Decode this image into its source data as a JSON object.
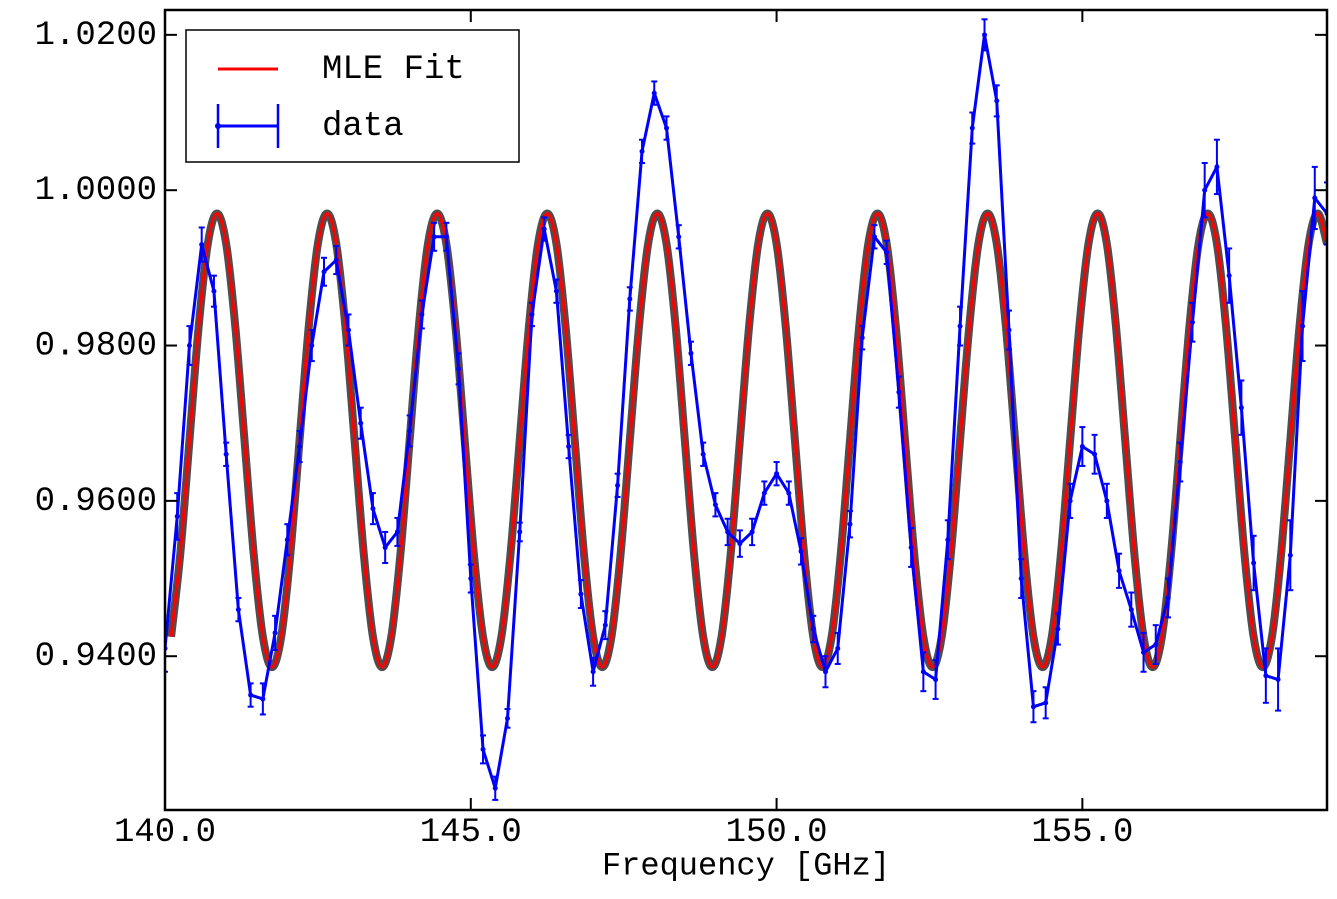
{
  "chart_data": {
    "type": "line",
    "xlabel": "Frequency [GHz]",
    "xlim": [
      140,
      159
    ],
    "ylim": [
      0.9202,
      1.0232
    ],
    "xticks": [
      {
        "value": 140,
        "label": "140.0"
      },
      {
        "value": 145,
        "label": "145.0"
      },
      {
        "value": 150,
        "label": "150.0"
      },
      {
        "value": 155,
        "label": "155.0"
      }
    ],
    "yticks": [
      {
        "value": 0.94,
        "label": "0.9400"
      },
      {
        "value": 0.96,
        "label": "0.9600"
      },
      {
        "value": 0.98,
        "label": "0.9800"
      },
      {
        "value": 1.0,
        "label": "1.0000"
      },
      {
        "value": 1.02,
        "label": "1.0200"
      }
    ],
    "legend": "upper left",
    "series": [
      {
        "name": "MLE Fit",
        "color": "#ff0000",
        "x": [
          140.1,
          140.25,
          140.4,
          140.55,
          140.7,
          140.85,
          141,
          141.15,
          141.3,
          141.45,
          141.6,
          141.75,
          141.9,
          142.05,
          142.2,
          142.35,
          142.5,
          142.65,
          142.8,
          142.95,
          143.1,
          143.25,
          143.4,
          143.55,
          143.7,
          143.85,
          144,
          144.15,
          144.3,
          144.45,
          144.6,
          144.75,
          144.9,
          145.05,
          145.2,
          145.35,
          145.5,
          145.65,
          145.8,
          145.95,
          146.1,
          146.25,
          146.4,
          146.55,
          146.7,
          146.85,
          147,
          147.15,
          147.3,
          147.45,
          147.6,
          147.75,
          147.9,
          148.05,
          148.2,
          148.35,
          148.5,
          148.65,
          148.8,
          148.95,
          149.1,
          149.25,
          149.4,
          149.55,
          149.7,
          149.85,
          150,
          150.15,
          150.3,
          150.45,
          150.6,
          150.75,
          150.9,
          151.05,
          151.2,
          151.35,
          151.5,
          151.65,
          151.8,
          151.95,
          152.1,
          152.25,
          152.4,
          152.55,
          152.7,
          152.85,
          153,
          153.15,
          153.3,
          153.45,
          153.6,
          153.75,
          153.9,
          154.05,
          154.2,
          154.35,
          154.5,
          154.65,
          154.8,
          154.95,
          155.1,
          155.25,
          155.4,
          155.55,
          155.7,
          155.85,
          156,
          156.15,
          156.3,
          156.45,
          156.6,
          156.75,
          156.9,
          157.05,
          157.2,
          157.35,
          157.5,
          157.65,
          157.8,
          157.95,
          158.1,
          158.25,
          158.4,
          158.55,
          158.7,
          158.85,
          159
        ],
        "values": [
          0.9425,
          0.9532,
          0.9678,
          0.9824,
          0.9931,
          0.997,
          0.9931,
          0.9824,
          0.9678,
          0.9532,
          0.9425,
          0.9386,
          0.9425,
          0.9532,
          0.9678,
          0.9824,
          0.9931,
          0.997,
          0.9931,
          0.9824,
          0.9678,
          0.9532,
          0.9425,
          0.9386,
          0.9425,
          0.9532,
          0.9678,
          0.9824,
          0.9931,
          0.997,
          0.9931,
          0.9824,
          0.9678,
          0.9532,
          0.9425,
          0.9386,
          0.9425,
          0.9532,
          0.9678,
          0.9824,
          0.9931,
          0.997,
          0.9931,
          0.9824,
          0.9678,
          0.9532,
          0.9425,
          0.9386,
          0.9425,
          0.9532,
          0.9678,
          0.9824,
          0.9931,
          0.997,
          0.9931,
          0.9824,
          0.9678,
          0.9532,
          0.9425,
          0.9386,
          0.9425,
          0.9532,
          0.9678,
          0.9824,
          0.9931,
          0.997,
          0.9931,
          0.9824,
          0.9678,
          0.9532,
          0.9425,
          0.9386,
          0.9425,
          0.9532,
          0.9678,
          0.9824,
          0.9931,
          0.997,
          0.9931,
          0.9824,
          0.9678,
          0.9532,
          0.9425,
          0.9386,
          0.9425,
          0.9532,
          0.9678,
          0.9824,
          0.9931,
          0.997,
          0.9931,
          0.9824,
          0.9678,
          0.9532,
          0.9425,
          0.9386,
          0.9425,
          0.9532,
          0.9678,
          0.9824,
          0.9931,
          0.997,
          0.9931,
          0.9824,
          0.9678,
          0.9532,
          0.9425,
          0.9386,
          0.9425,
          0.9532,
          0.9678,
          0.9824,
          0.9931,
          0.997,
          0.9931,
          0.9824,
          0.9678,
          0.9532,
          0.9425,
          0.9386,
          0.9425,
          0.9532,
          0.9678,
          0.9824,
          0.9931,
          0.997,
          0.9931
        ]
      },
      {
        "name": "data",
        "color": "#0000ff",
        "x": [
          140,
          140.2,
          140.4,
          140.6,
          140.8,
          141,
          141.2,
          141.4,
          141.6,
          141.8,
          142,
          142.2,
          142.4,
          142.6,
          142.8,
          143,
          143.2,
          143.4,
          143.6,
          143.8,
          144,
          144.2,
          144.4,
          144.6,
          144.8,
          145,
          145.2,
          145.4,
          145.6,
          145.8,
          146,
          146.2,
          146.4,
          146.6,
          146.8,
          147,
          147.2,
          147.4,
          147.6,
          147.8,
          148,
          148.2,
          148.4,
          148.6,
          148.8,
          149,
          149.2,
          149.4,
          149.6,
          149.8,
          150,
          150.2,
          150.4,
          150.6,
          150.8,
          151,
          151.2,
          151.4,
          151.6,
          151.8,
          152,
          152.2,
          152.4,
          152.6,
          152.8,
          153,
          153.2,
          153.4,
          153.6,
          153.8,
          154,
          154.2,
          154.4,
          154.6,
          154.8,
          155,
          155.2,
          155.4,
          155.6,
          155.8,
          156,
          156.2,
          156.4,
          156.6,
          156.8,
          157,
          157.2,
          157.4,
          157.6,
          157.8,
          158,
          158.2,
          158.4,
          158.6,
          158.8,
          159
        ],
        "values": [
          0.941,
          0.958,
          0.98,
          0.993,
          0.987,
          0.966,
          0.946,
          0.935,
          0.9345,
          0.943,
          0.955,
          0.967,
          0.98,
          0.9895,
          0.991,
          0.982,
          0.97,
          0.959,
          0.954,
          0.956,
          0.969,
          0.984,
          0.994,
          0.994,
          0.977,
          0.95,
          0.928,
          0.923,
          0.932,
          0.956,
          0.984,
          0.995,
          0.987,
          0.967,
          0.948,
          0.938,
          0.944,
          0.962,
          0.986,
          1.005,
          1.0125,
          1.008,
          0.994,
          0.979,
          0.966,
          0.9595,
          0.956,
          0.9545,
          0.956,
          0.961,
          0.9635,
          0.961,
          0.9535,
          0.9435,
          0.938,
          0.941,
          0.957,
          0.981,
          0.994,
          0.992,
          0.974,
          0.954,
          0.938,
          0.937,
          0.955,
          0.9825,
          1.008,
          1.02,
          1.0115,
          0.982,
          0.95,
          0.9335,
          0.934,
          0.9435,
          0.96,
          0.967,
          0.966,
          0.96,
          0.951,
          0.946,
          0.9405,
          0.9415,
          0.9475,
          0.965,
          0.983,
          1.0,
          1.003,
          0.989,
          0.972,
          0.952,
          0.9375,
          0.937,
          0.953,
          0.9825,
          0.999,
          0.997
        ],
        "errors": [
          0.003,
          0.003,
          0.0025,
          0.0022,
          0.002,
          0.0015,
          0.0015,
          0.0015,
          0.002,
          0.0022,
          0.002,
          0.002,
          0.002,
          0.0018,
          0.0018,
          0.002,
          0.002,
          0.002,
          0.002,
          0.0018,
          0.002,
          0.0018,
          0.0018,
          0.0018,
          0.002,
          0.0018,
          0.0018,
          0.0015,
          0.0012,
          0.0012,
          0.0015,
          0.0015,
          0.0015,
          0.0015,
          0.0018,
          0.0018,
          0.0018,
          0.0015,
          0.0015,
          0.0015,
          0.0015,
          0.0015,
          0.0015,
          0.0015,
          0.0015,
          0.0015,
          0.0017,
          0.0017,
          0.0017,
          0.0015,
          0.0015,
          0.0015,
          0.0017,
          0.0017,
          0.002,
          0.002,
          0.0017,
          0.0015,
          0.0015,
          0.0015,
          0.002,
          0.0025,
          0.0025,
          0.0025,
          0.0025,
          0.0025,
          0.002,
          0.002,
          0.002,
          0.0025,
          0.0025,
          0.002,
          0.002,
          0.002,
          0.0022,
          0.0025,
          0.0025,
          0.0022,
          0.0022,
          0.0022,
          0.0025,
          0.0025,
          0.0025,
          0.0025,
          0.0025,
          0.0035,
          0.0035,
          0.0035,
          0.0035,
          0.0035,
          0.0035,
          0.004,
          0.0045,
          0.0045,
          0.004,
          0.004
        ]
      }
    ]
  }
}
